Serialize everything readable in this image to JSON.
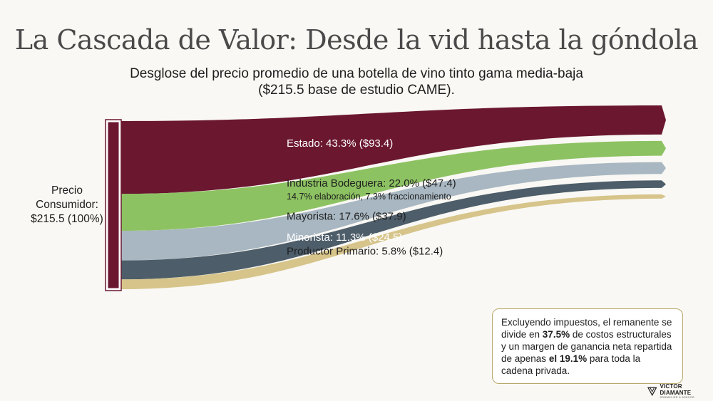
{
  "title": "La Cascada de Valor: Desde la vid hasta la góndola",
  "subtitle_line1": "Desglose del precio promedio de una botella de vino tinto gama media-baja",
  "subtitle_line2": "($215.5 base de estudio CAME).",
  "source": {
    "line1": "Precio",
    "line2": "Consumidor:",
    "line3": "$215.5 (100%)"
  },
  "chart_data": {
    "type": "sankey",
    "source": {
      "name": "Precio Consumidor",
      "value": 215.5,
      "percent": 100
    },
    "flows": [
      {
        "label": "Estado: 43.3% ($93.4)",
        "percent": 43.3,
        "value": 93.4,
        "color": "#6b1730",
        "sublabel": ""
      },
      {
        "label": "Industria Bodeguera: 22.0% ($47.4)",
        "percent": 22.0,
        "value": 47.4,
        "color": "#8dc262",
        "sublabel": "14.7% elaboración, 7.3% fraccionamiento"
      },
      {
        "label": "Mayorista: 17.6% ($37.9)",
        "percent": 17.6,
        "value": 37.9,
        "color": "#a8b7c1",
        "sublabel": ""
      },
      {
        "label": "Minorista: 11.3% ($24.5)",
        "percent": 11.3,
        "value": 24.5,
        "color": "#4d5d69",
        "sublabel": ""
      },
      {
        "label": "Productor Primario: 5.8% ($12.4)",
        "percent": 5.8,
        "value": 12.4,
        "color": "#d6c48a",
        "sublabel": ""
      }
    ]
  },
  "callout": {
    "part1": "Excluyendo impuestos, el remanente se divide en ",
    "bold1": "37.5%",
    "part2": " de costos estructurales y un margen de ganancia neta repartida de apenas ",
    "bold2": "el 19.1%",
    "part3": " para toda la cadena privada."
  },
  "brand": {
    "name": "VICTOR DIAMANTE",
    "tagline": "SOMMELIER & ASESOR"
  },
  "colors": {
    "source_bar": "#6b1730",
    "callout_border": "#b8a96a"
  }
}
